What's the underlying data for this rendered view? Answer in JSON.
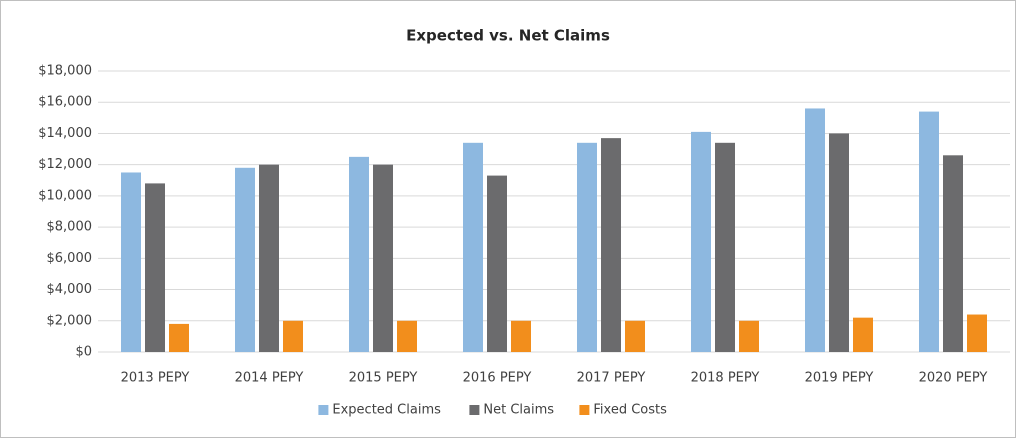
{
  "chart_data": {
    "type": "bar",
    "title": "Expected vs. Net Claims",
    "categories": [
      "2013 PEPY",
      "2014 PEPY",
      "2015 PEPY",
      "2016 PEPY",
      "2017 PEPY",
      "2018 PEPY",
      "2019 PEPY",
      "2020 PEPY"
    ],
    "series": [
      {
        "name": "Expected Claims",
        "color": "#8db8e0",
        "values": [
          11500,
          11800,
          12500,
          13400,
          13400,
          14100,
          15600,
          15400
        ]
      },
      {
        "name": "Net Claims",
        "color": "#6b6b6d",
        "values": [
          10800,
          12000,
          12000,
          11300,
          13700,
          13400,
          14000,
          12600
        ]
      },
      {
        "name": "Fixed Costs",
        "color": "#f28e1c",
        "values": [
          1800,
          2000,
          2000,
          2000,
          2000,
          2000,
          2200,
          2400
        ]
      }
    ],
    "ylim": [
      0,
      18000
    ],
    "yticks": [
      {
        "value": 0,
        "label": "$0"
      },
      {
        "value": 2000,
        "label": "$2,000"
      },
      {
        "value": 4000,
        "label": "$4,000"
      },
      {
        "value": 6000,
        "label": "$6,000"
      },
      {
        "value": 8000,
        "label": "$8,000"
      },
      {
        "value": 10000,
        "label": "$10,000"
      },
      {
        "value": 12000,
        "label": "$12,000"
      },
      {
        "value": 14000,
        "label": "$14,000"
      },
      {
        "value": 16000,
        "label": "$16,000"
      },
      {
        "value": 18000,
        "label": "$18,000"
      }
    ],
    "grid": true,
    "legend": "bottom"
  }
}
